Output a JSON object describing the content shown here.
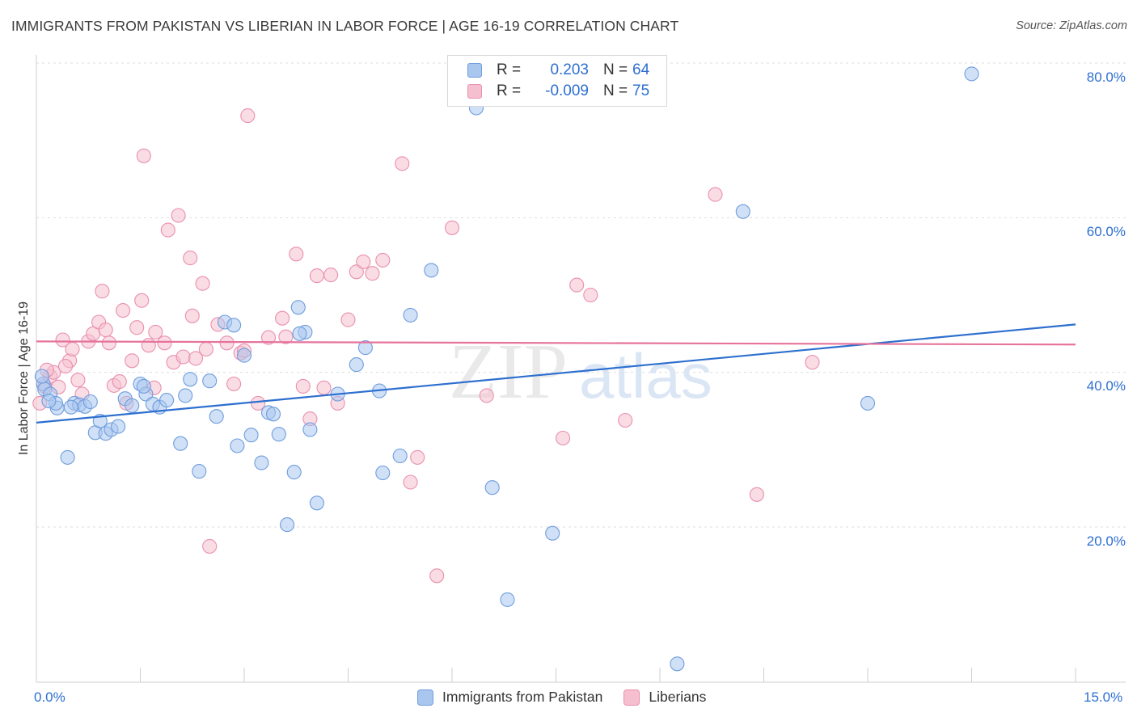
{
  "title": "IMMIGRANTS FROM PAKISTAN VS LIBERIAN IN LABOR FORCE | AGE 16-19 CORRELATION CHART",
  "source": "Source: ZipAtlas.com",
  "watermark": {
    "part1": "ZIP",
    "part2": "atlas"
  },
  "legend_top": {
    "rows": [
      {
        "r_label": "R =",
        "r_value": "0.203",
        "n_label": "N =",
        "n_value": "64"
      },
      {
        "r_label": "R =",
        "r_value": "-0.009",
        "n_label": "N =",
        "n_value": "75"
      }
    ]
  },
  "legend_bottom": {
    "items": [
      "Immigrants from Pakistan",
      "Liberians"
    ]
  },
  "axis": {
    "x_left_label": "0.0%",
    "x_right_label": "15.0%",
    "y_labels": [
      "80.0%",
      "60.0%",
      "40.0%",
      "20.0%"
    ]
  },
  "colors": {
    "blue_fill": "#a9c6ee",
    "blue_stroke": "#6f9ddd",
    "blue_line": "#2d6fcf",
    "pink_fill": "#f6bfd0",
    "pink_stroke": "#e990ad",
    "pink_line": "#e6739b",
    "tick_text": "#2e6fd1",
    "grid": "#dddddd"
  },
  "chart_data": {
    "type": "scatter",
    "title": "IMMIGRANTS FROM PAKISTAN VS LIBERIAN IN LABOR FORCE | AGE 16-19 CORRELATION CHART",
    "xlabel": "",
    "ylabel": "In Labor Force | Age 16-19",
    "xlim": [
      0,
      15
    ],
    "ylim": [
      0,
      82
    ],
    "y_ticks": [
      20,
      40,
      60,
      80
    ],
    "grid": "horizontal dashed",
    "legend_placement": "top-center",
    "series": [
      {
        "name": "Immigrants from Pakistan",
        "r": 0.203,
        "n": 64,
        "trend": [
          [
            0,
            33.5
          ],
          [
            15,
            46.2
          ]
        ],
        "points": [
          [
            0.1,
            38.5
          ],
          [
            0.12,
            37.8
          ],
          [
            0.2,
            37.2
          ],
          [
            0.3,
            35.4
          ],
          [
            0.28,
            36.0
          ],
          [
            0.45,
            29.0
          ],
          [
            0.55,
            36.0
          ],
          [
            0.62,
            35.8
          ],
          [
            0.7,
            35.6
          ],
          [
            0.78,
            36.2
          ],
          [
            0.85,
            32.2
          ],
          [
            0.92,
            33.7
          ],
          [
            1.0,
            32.1
          ],
          [
            1.08,
            32.6
          ],
          [
            1.18,
            33.0
          ],
          [
            1.28,
            36.6
          ],
          [
            1.38,
            35.7
          ],
          [
            1.5,
            38.5
          ],
          [
            1.58,
            37.2
          ],
          [
            1.68,
            35.9
          ],
          [
            1.78,
            35.5
          ],
          [
            1.88,
            36.4
          ],
          [
            2.08,
            30.8
          ],
          [
            2.15,
            37.0
          ],
          [
            2.22,
            39.1
          ],
          [
            2.35,
            27.2
          ],
          [
            2.5,
            38.9
          ],
          [
            2.6,
            34.3
          ],
          [
            2.72,
            46.5
          ],
          [
            2.85,
            46.1
          ],
          [
            2.9,
            30.5
          ],
          [
            3.0,
            42.2
          ],
          [
            3.1,
            31.9
          ],
          [
            3.25,
            28.3
          ],
          [
            3.35,
            34.8
          ],
          [
            3.42,
            34.6
          ],
          [
            3.5,
            32.0
          ],
          [
            3.62,
            20.3
          ],
          [
            3.72,
            27.1
          ],
          [
            3.78,
            48.4
          ],
          [
            3.88,
            45.2
          ],
          [
            3.95,
            32.6
          ],
          [
            4.05,
            23.1
          ],
          [
            4.35,
            37.2
          ],
          [
            4.62,
            41.0
          ],
          [
            4.75,
            43.2
          ],
          [
            4.95,
            37.6
          ],
          [
            5.0,
            27.0
          ],
          [
            5.25,
            29.2
          ],
          [
            5.4,
            47.4
          ],
          [
            5.7,
            53.2
          ],
          [
            6.35,
            74.2
          ],
          [
            6.58,
            25.1
          ],
          [
            6.8,
            10.6
          ],
          [
            7.45,
            19.2
          ],
          [
            9.25,
            2.3
          ],
          [
            10.2,
            60.8
          ],
          [
            12.0,
            36.0
          ],
          [
            13.5,
            78.6
          ],
          [
            0.08,
            39.5
          ],
          [
            0.18,
            36.3
          ],
          [
            0.5,
            35.5
          ],
          [
            1.55,
            38.2
          ],
          [
            3.8,
            45.0
          ]
        ]
      },
      {
        "name": "Liberians",
        "r": -0.009,
        "n": 75,
        "trend": [
          [
            0,
            44.0
          ],
          [
            15,
            43.6
          ]
        ],
        "points": [
          [
            0.05,
            36.0
          ],
          [
            0.12,
            38.2
          ],
          [
            0.2,
            39.5
          ],
          [
            0.25,
            40.0
          ],
          [
            0.32,
            38.1
          ],
          [
            0.38,
            44.2
          ],
          [
            0.48,
            41.5
          ],
          [
            0.52,
            43.0
          ],
          [
            0.6,
            39.0
          ],
          [
            0.66,
            37.2
          ],
          [
            0.75,
            44.0
          ],
          [
            0.82,
            45.0
          ],
          [
            0.9,
            46.5
          ],
          [
            0.95,
            50.5
          ],
          [
            1.0,
            45.5
          ],
          [
            1.05,
            43.8
          ],
          [
            1.12,
            38.3
          ],
          [
            1.2,
            38.8
          ],
          [
            1.25,
            48.0
          ],
          [
            1.3,
            36.0
          ],
          [
            1.38,
            41.5
          ],
          [
            1.45,
            45.8
          ],
          [
            1.52,
            49.3
          ],
          [
            1.55,
            68.0
          ],
          [
            1.62,
            43.5
          ],
          [
            1.72,
            45.2
          ],
          [
            1.85,
            43.8
          ],
          [
            1.9,
            58.4
          ],
          [
            1.98,
            41.3
          ],
          [
            2.05,
            60.3
          ],
          [
            2.12,
            42.0
          ],
          [
            2.22,
            54.8
          ],
          [
            2.25,
            47.3
          ],
          [
            2.3,
            41.8
          ],
          [
            2.4,
            51.5
          ],
          [
            2.45,
            43.0
          ],
          [
            2.5,
            17.5
          ],
          [
            2.62,
            46.2
          ],
          [
            2.75,
            43.8
          ],
          [
            2.85,
            38.5
          ],
          [
            2.95,
            42.5
          ],
          [
            3.05,
            73.2
          ],
          [
            3.2,
            36.0
          ],
          [
            3.35,
            44.5
          ],
          [
            3.55,
            47.0
          ],
          [
            3.6,
            44.6
          ],
          [
            3.75,
            55.3
          ],
          [
            3.85,
            38.2
          ],
          [
            3.95,
            34.0
          ],
          [
            4.05,
            52.5
          ],
          [
            4.15,
            38.0
          ],
          [
            4.25,
            52.6
          ],
          [
            4.35,
            36.0
          ],
          [
            4.5,
            46.8
          ],
          [
            4.62,
            53.0
          ],
          [
            4.72,
            54.3
          ],
          [
            4.85,
            52.8
          ],
          [
            5.0,
            54.5
          ],
          [
            5.28,
            67.0
          ],
          [
            5.4,
            25.8
          ],
          [
            5.5,
            29.0
          ],
          [
            5.78,
            13.7
          ],
          [
            6.0,
            58.7
          ],
          [
            6.5,
            37.0
          ],
          [
            7.6,
            31.5
          ],
          [
            7.8,
            51.3
          ],
          [
            8.0,
            50.0
          ],
          [
            8.5,
            33.8
          ],
          [
            9.8,
            63.0
          ],
          [
            10.4,
            24.2
          ],
          [
            11.2,
            41.3
          ],
          [
            0.15,
            40.3
          ],
          [
            0.42,
            40.8
          ],
          [
            1.7,
            38.0
          ],
          [
            3.0,
            42.8
          ]
        ]
      }
    ]
  }
}
